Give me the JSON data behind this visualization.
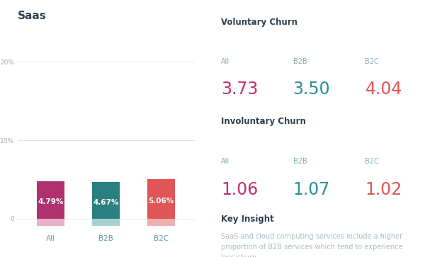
{
  "title": "Saas",
  "bar_categories": [
    "All",
    "B2B",
    "B2C"
  ],
  "bar_values": [
    4.79,
    4.67,
    5.06
  ],
  "bar_colors": [
    "#b03070",
    "#2a8080",
    "#e05555"
  ],
  "bar_reflection_colors": [
    "#e8b0c8",
    "#a8d0d0",
    "#f0b0b0"
  ],
  "bar_label_color": "#ffffff",
  "bar_cat_color": "#6699bb",
  "voluntary_churn_title": "Voluntary Churn",
  "voluntary_labels": [
    "All",
    "B2B",
    "B2C"
  ],
  "voluntary_values": [
    "3.73",
    "3.50",
    "4.04"
  ],
  "vc_colors": [
    "#c03070",
    "#2a9090",
    "#e05555"
  ],
  "involuntary_churn_title": "Involuntary Churn",
  "involuntary_labels": [
    "All",
    "B2B",
    "B2C"
  ],
  "involuntary_values": [
    "1.06",
    "1.07",
    "1.02"
  ],
  "ic_colors": [
    "#c03070",
    "#2a9090",
    "#e05555"
  ],
  "key_insight_title": "Key Insight",
  "key_insight_text": "SaaS and cloud computing services include a higher\nproportion of B2B services which tend to experience\nless churn.",
  "bg_color": "#ffffff",
  "title_color": "#2d3f50",
  "section_title_color": "#2d3f50",
  "label_color": "#8aaabb",
  "insight_text_color": "#aabbc8",
  "divider_color": "#e0e5e8",
  "ytick_color": "#aaaaaa",
  "bar_ytick_labels": [
    "0",
    "10%",
    "20%"
  ]
}
